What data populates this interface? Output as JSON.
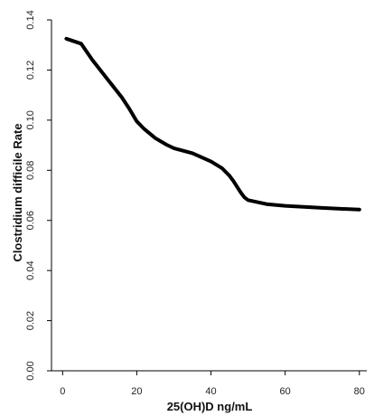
{
  "chart_data": {
    "type": "line",
    "title": "",
    "xlabel": "25(OH)D ng/mL",
    "ylabel": "Clostridium difficile Rate",
    "xlim": [
      -3,
      82
    ],
    "ylim": [
      0,
      0.14
    ],
    "x_ticks": [
      0,
      20,
      40,
      60,
      80
    ],
    "y_ticks": [
      0,
      0.02,
      0.04,
      0.06,
      0.08,
      0.1,
      0.12,
      0.14
    ],
    "x_tick_labels": [
      "0",
      "20",
      "40",
      "60",
      "80"
    ],
    "y_tick_labels": [
      "0.00",
      "0.02",
      "0.04",
      "0.06",
      "0.08",
      "0.10",
      "0.12",
      "0.14"
    ],
    "grid": false,
    "line_color": "#000000",
    "series": [
      {
        "x": [
          1,
          5,
          8,
          12,
          16,
          18,
          19,
          20,
          22,
          25,
          28,
          30,
          35,
          40,
          43,
          45,
          46,
          48,
          49,
          50,
          55,
          60,
          70,
          80
        ],
        "values": [
          0.1325,
          0.1305,
          0.124,
          0.1165,
          0.109,
          0.1045,
          0.102,
          0.0995,
          0.0965,
          0.0928,
          0.0902,
          0.0888,
          0.0868,
          0.0835,
          0.0808,
          0.0778,
          0.0758,
          0.0712,
          0.0692,
          0.0681,
          0.0665,
          0.0658,
          0.065,
          0.0643
        ]
      }
    ]
  }
}
